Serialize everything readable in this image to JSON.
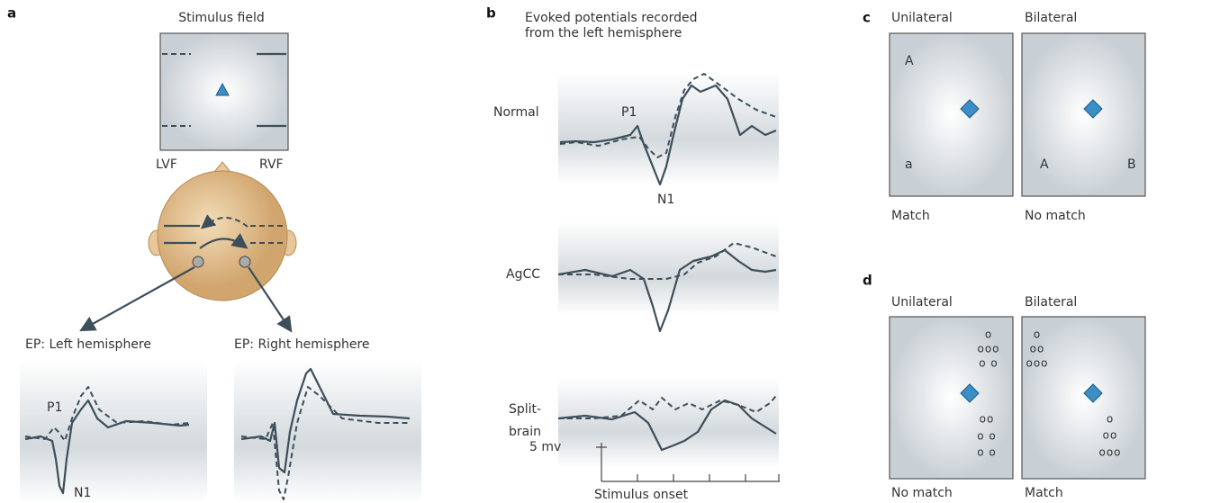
{
  "panels": {
    "a": {
      "label": "a",
      "stimulus_title": "Stimulus field",
      "lvf": "LVF",
      "rvf": "RVF",
      "ep_left": {
        "title": "EP: Left hemisphere",
        "p1": "P1",
        "n1": "N1"
      },
      "ep_right": {
        "title": "EP: Right hemisphere"
      }
    },
    "b": {
      "label": "b",
      "title_lines": [
        "Evoked potentials recorded",
        "from the left hemisphere"
      ],
      "rows": [
        {
          "label_lines": [
            "Normal"
          ],
          "p1": "P1",
          "n1": "N1"
        },
        {
          "label_lines": [
            "AgCC"
          ]
        },
        {
          "label_lines": [
            "Split-",
            "brain"
          ]
        }
      ],
      "scale_label": "5 mv",
      "x_label": "Stimulus onset"
    },
    "c": {
      "label": "c",
      "boxes": [
        {
          "title": "Unilateral",
          "letters": [
            "A",
            "a"
          ],
          "caption": "Match"
        },
        {
          "title": "Bilateral",
          "letters": [
            "A",
            "B"
          ],
          "caption": "No match"
        }
      ]
    },
    "d": {
      "label": "d",
      "boxes": [
        {
          "title": "Unilateral",
          "groups": [
            [
              "o",
              "ooo",
              "o o"
            ],
            [
              "oo",
              "o o",
              "o o"
            ]
          ],
          "caption": "No match"
        },
        {
          "title": "Bilateral",
          "groups": [
            [
              "o",
              "oo",
              "ooo"
            ],
            [
              "o",
              "oo",
              "ooo"
            ]
          ],
          "caption": "Match"
        }
      ]
    }
  }
}
